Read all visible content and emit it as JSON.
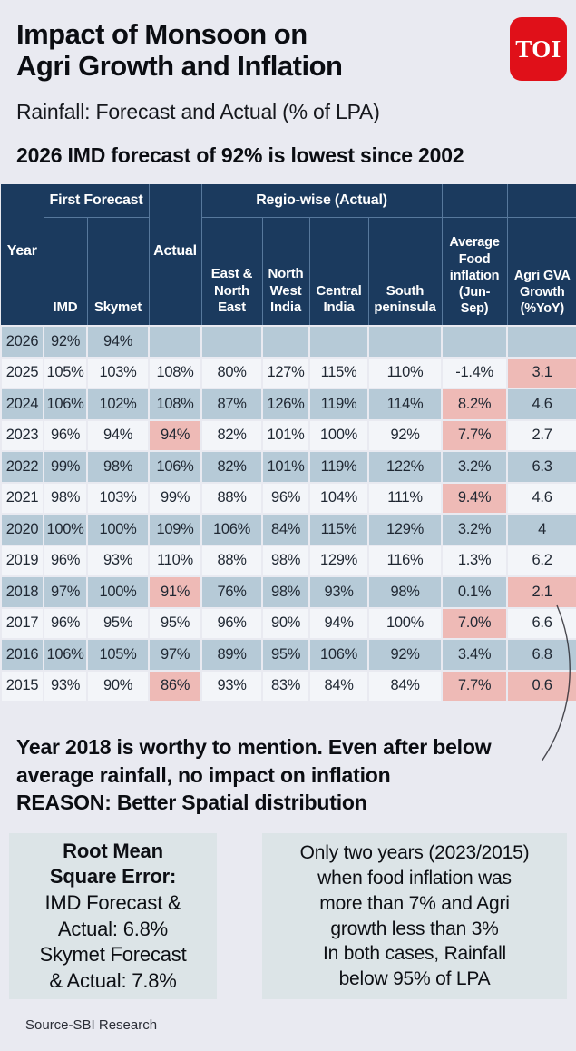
{
  "header": {
    "title": "Impact of Monsoon on\nAgri Growth and Inflation",
    "subtitle": "Rainfall: Forecast and Actual (% of LPA)",
    "headline": "2026 IMD forecast of 92% is lowest since 2002",
    "logo_text": "TOI",
    "logo_color": "#e01019"
  },
  "chart_data": {
    "type": "table",
    "title": "Rainfall: Forecast and Actual (% of LPA)",
    "group_headers": {
      "first_forecast": "First Forecast",
      "regio_wise": "Regio-wise (Actual)"
    },
    "columns": [
      {
        "key": "year",
        "label": "Year"
      },
      {
        "key": "imd",
        "label": "IMD"
      },
      {
        "key": "skymet",
        "label": "Skymet"
      },
      {
        "key": "actual",
        "label": "Actual"
      },
      {
        "key": "east_ne",
        "label": "East & North East"
      },
      {
        "key": "nw_india",
        "label": "North West India"
      },
      {
        "key": "central",
        "label": "Central India"
      },
      {
        "key": "south",
        "label": "South peninsula"
      },
      {
        "key": "food_inflation",
        "label": "Average Food inflation (Jun-Sep)"
      },
      {
        "key": "agri_gva",
        "label": "Agri GVA Growth (%YoY)"
      }
    ],
    "rows": [
      {
        "cells": [
          "2026",
          "92%",
          "94%",
          "",
          "",
          "",
          "",
          "",
          "",
          ""
        ],
        "pink": []
      },
      {
        "cells": [
          "2025",
          "105%",
          "103%",
          "108%",
          "80%",
          "127%",
          "115%",
          "110%",
          "-1.4%",
          "3.1"
        ],
        "pink": [
          "agri_gva"
        ]
      },
      {
        "cells": [
          "2024",
          "106%",
          "102%",
          "108%",
          "87%",
          "126%",
          "119%",
          "114%",
          "8.2%",
          "4.6"
        ],
        "pink": [
          "food_inflation"
        ]
      },
      {
        "cells": [
          "2023",
          "96%",
          "94%",
          "94%",
          "82%",
          "101%",
          "100%",
          "92%",
          "7.7%",
          "2.7"
        ],
        "pink": [
          "actual",
          "food_inflation"
        ]
      },
      {
        "cells": [
          "2022",
          "99%",
          "98%",
          "106%",
          "82%",
          "101%",
          "119%",
          "122%",
          "3.2%",
          "6.3"
        ],
        "pink": []
      },
      {
        "cells": [
          "2021",
          "98%",
          "103%",
          "99%",
          "88%",
          "96%",
          "104%",
          "111%",
          "9.4%",
          "4.6"
        ],
        "pink": [
          "food_inflation"
        ]
      },
      {
        "cells": [
          "2020",
          "100%",
          "100%",
          "109%",
          "106%",
          "84%",
          "115%",
          "129%",
          "3.2%",
          "4"
        ],
        "pink": []
      },
      {
        "cells": [
          "2019",
          "96%",
          "93%",
          "110%",
          "88%",
          "98%",
          "129%",
          "116%",
          "1.3%",
          "6.2"
        ],
        "pink": []
      },
      {
        "cells": [
          "2018",
          "97%",
          "100%",
          "91%",
          "76%",
          "98%",
          "93%",
          "98%",
          "0.1%",
          "2.1"
        ],
        "pink": [
          "actual",
          "agri_gva"
        ]
      },
      {
        "cells": [
          "2017",
          "96%",
          "95%",
          "95%",
          "96%",
          "90%",
          "94%",
          "100%",
          "7.0%",
          "6.6"
        ],
        "pink": [
          "food_inflation"
        ]
      },
      {
        "cells": [
          "2016",
          "106%",
          "105%",
          "97%",
          "89%",
          "95%",
          "106%",
          "92%",
          "3.4%",
          "6.8"
        ],
        "pink": []
      },
      {
        "cells": [
          "2015",
          "93%",
          "90%",
          "86%",
          "93%",
          "83%",
          "84%",
          "84%",
          "7.7%",
          "0.6"
        ],
        "pink": [
          "actual",
          "food_inflation",
          "agri_gva"
        ]
      }
    ],
    "highlight_color": "#eebab6",
    "row_colors": {
      "even": "#b6cad7",
      "odd": "#f3f5f9"
    },
    "header_color": "#1b3a5e"
  },
  "annotation": {
    "text": "Year 2018 is worthy to mention. Even after below\naverage rainfall, no impact on inflation\nREASON: Better Spatial distribution"
  },
  "callouts": {
    "rmse": {
      "title": "Root Mean\nSquare Error:",
      "body": "IMD Forecast &\nActual: 6.8%\nSkymet Forecast\n& Actual: 7.8%"
    },
    "two_years": {
      "body": "Only two years (2023/2015)\nwhen food inflation was\nmore than 7% and Agri\ngrowth less than 3%\nIn both cases, Rainfall\nbelow 95% of LPA"
    }
  },
  "source": "Source-SBI Research"
}
